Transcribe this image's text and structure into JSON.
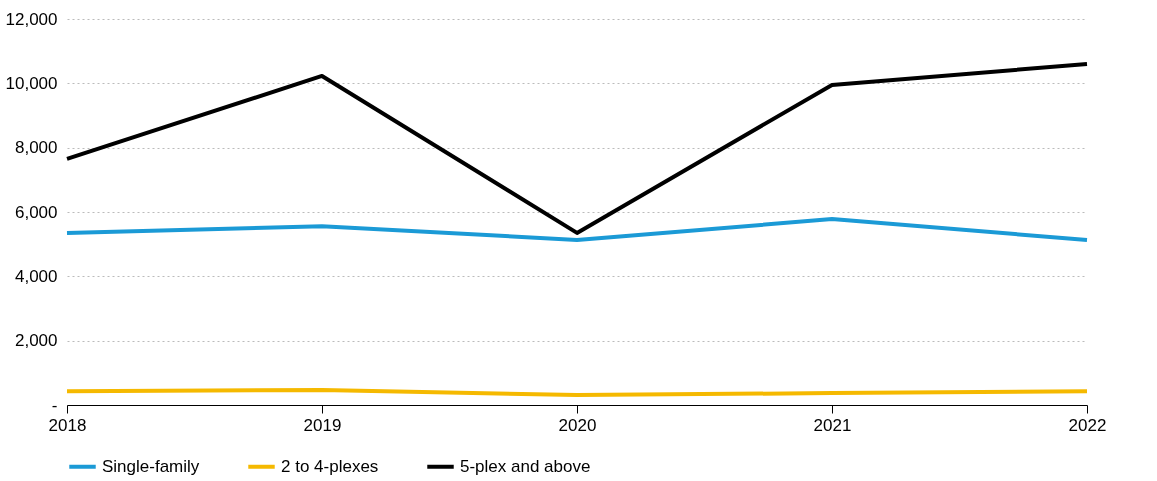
{
  "chart_data": {
    "type": "line",
    "x": [
      2018,
      2019,
      2020,
      2021,
      2022
    ],
    "series": [
      {
        "name": "Single-family",
        "color": "#1b9ad6",
        "values": [
          5350,
          5560,
          5130,
          5780,
          5130
        ]
      },
      {
        "name": "2 to 4-plexes",
        "color": "#f5b900",
        "values": [
          430,
          470,
          310,
          370,
          430
        ]
      },
      {
        "name": "5-plex and above",
        "color": "#000000",
        "values": [
          7650,
          10230,
          5350,
          9950,
          10600
        ]
      }
    ],
    "xlim": [
      2018,
      2022
    ],
    "xticks": [
      2018,
      2019,
      2020,
      2021,
      2022
    ],
    "ylim": [
      0,
      12000
    ],
    "yticks": [
      {
        "value": 0,
        "label": "-"
      },
      {
        "value": 2000,
        "label": "2,000"
      },
      {
        "value": 4000,
        "label": "4,000"
      },
      {
        "value": 6000,
        "label": "6,000"
      },
      {
        "value": 8000,
        "label": "8,000"
      },
      {
        "value": 10000,
        "label": "10,000"
      },
      {
        "value": 12000,
        "label": "12,000"
      }
    ],
    "grid": "y",
    "legend": "bottom",
    "marker": "none",
    "line_style": "solid"
  }
}
